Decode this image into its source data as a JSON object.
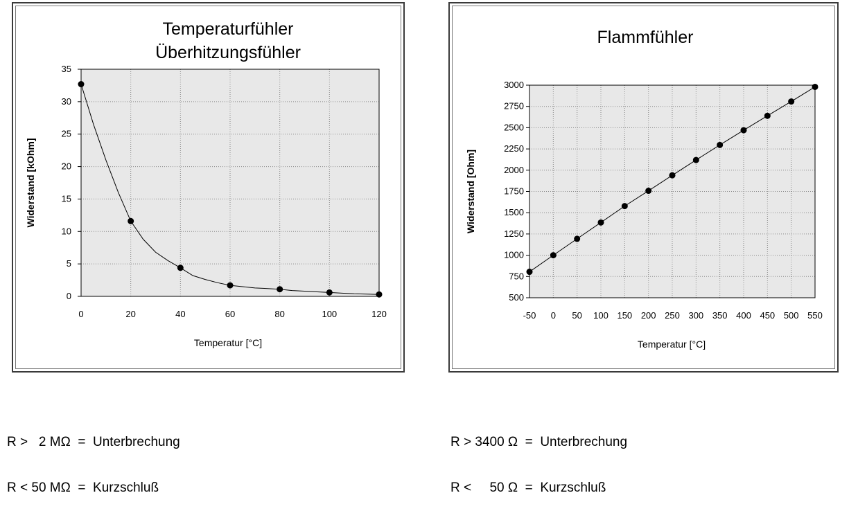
{
  "chart_data": [
    {
      "type": "line",
      "title": [
        "Temperaturfühler",
        "Überhitzungsfühler"
      ],
      "xlabel": "Temperatur [°C]",
      "ylabel": "Widerstand [kOhm]",
      "xlim": [
        0,
        120
      ],
      "ylim": [
        0,
        35
      ],
      "x_ticks": [
        "0",
        "20",
        "40",
        "60",
        "80",
        "100",
        "120"
      ],
      "y_ticks": [
        "0",
        "5",
        "10",
        "15",
        "20",
        "25",
        "30",
        "35"
      ],
      "grid": true,
      "legend": "none",
      "x": [
        0,
        20,
        40,
        60,
        80,
        100,
        120
      ],
      "values": [
        32.7,
        11.6,
        4.4,
        1.7,
        1.1,
        0.6,
        0.3
      ],
      "curve_x": [
        0,
        5,
        10,
        15,
        20,
        25,
        30,
        35,
        40,
        45,
        50,
        55,
        60,
        65,
        70,
        75,
        80,
        85,
        90,
        95,
        100,
        105,
        110,
        115,
        120
      ],
      "curve_y": [
        32.7,
        26.5,
        21.0,
        16.0,
        11.6,
        8.8,
        6.8,
        5.5,
        4.4,
        3.2,
        2.6,
        2.1,
        1.7,
        1.5,
        1.3,
        1.2,
        1.1,
        0.9,
        0.8,
        0.7,
        0.6,
        0.5,
        0.4,
        0.35,
        0.3
      ]
    },
    {
      "type": "line",
      "title": [
        "Flammfühler"
      ],
      "xlabel": "Temperatur [°C]",
      "ylabel": "Widerstand [Ohm]",
      "xlim": [
        -50,
        550
      ],
      "ylim": [
        500,
        3000
      ],
      "x_ticks": [
        "-50",
        "0",
        "50",
        "100",
        "150",
        "200",
        "250",
        "300",
        "350",
        "400",
        "450",
        "500",
        "550"
      ],
      "y_ticks": [
        "500",
        "750",
        "1000",
        "1250",
        "1500",
        "1750",
        "2000",
        "2250",
        "2500",
        "2750",
        "3000"
      ],
      "grid": true,
      "legend": "none",
      "x": [
        -50,
        0,
        50,
        100,
        150,
        200,
        250,
        300,
        350,
        400,
        450,
        500,
        550
      ],
      "values": [
        805,
        1000,
        1193,
        1385,
        1578,
        1758,
        1940,
        2120,
        2297,
        2470,
        2640,
        2808,
        2980
      ]
    }
  ],
  "notes_left": [
    "R >   2 MΩ  =  Unterbrechung",
    "R < 50 MΩ  =  Kurzschluß"
  ],
  "notes_right": [
    "R > 3400 Ω  =  Unterbrechung",
    "R <     50 Ω  =  Kurzschluß"
  ]
}
